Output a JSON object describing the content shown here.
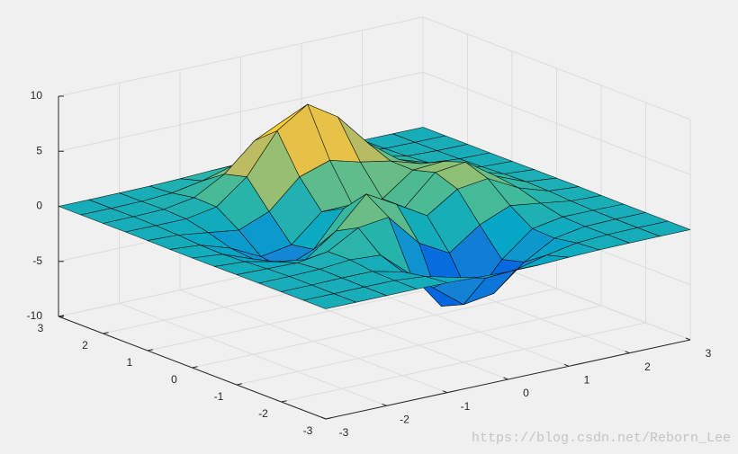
{
  "chart_data": {
    "type": "surface",
    "x": [
      -3,
      -2.5,
      -2,
      -1.5,
      -1,
      -0.5,
      0,
      0.5,
      1,
      1.5,
      2,
      2.5,
      3
    ],
    "y": [
      -3,
      -2.5,
      -2,
      -1.5,
      -1,
      -0.5,
      0,
      0.5,
      1,
      1.5,
      2,
      2.5,
      3
    ],
    "z": [
      [
        0,
        0,
        0,
        0,
        -0.03,
        -0.14,
        -0.24,
        -0.22,
        -0.11,
        -0.03,
        -0.01,
        0,
        0
      ],
      [
        0,
        0,
        0.01,
        0,
        -0.23,
        -0.91,
        -1.57,
        -1.41,
        -0.69,
        -0.18,
        -0.03,
        0,
        0
      ],
      [
        0,
        0.01,
        0.05,
        0.05,
        -0.59,
        -2.63,
        -4.75,
        -4.34,
        -2.1,
        -0.53,
        -0.06,
        0,
        0
      ],
      [
        0,
        0.01,
        0.08,
        0.33,
        0.15,
        -2.19,
        -5.68,
        -5.76,
        -2.63,
        -0.44,
        0.04,
        0.03,
        0
      ],
      [
        -0.01,
        -0.06,
        -0.13,
        0.3,
        1.86,
        2.22,
        -0.72,
        -2.22,
        -0.27,
        0.88,
        0.5,
        0.11,
        0.01
      ],
      [
        -0.03,
        -0.2,
        -0.8,
        -1.21,
        0.8,
        3.55,
        2,
        0.39,
        2.2,
        2.56,
        1.12,
        0.24,
        0.03
      ],
      [
        -0.04,
        -0.3,
        -1.33,
        -2.77,
        -1.65,
        1.48,
        0.98,
        0.37,
        2.94,
        3.27,
        1.41,
        0.3,
        0.03
      ],
      [
        -0.03,
        -0.25,
        -1.12,
        -2.49,
        -2,
        0.39,
        0.46,
        0.37,
        2.38,
        2.56,
        1.09,
        0.23,
        0.03
      ],
      [
        -0.01,
        -0.11,
        -0.48,
        -0.86,
        0.23,
        2.79,
        3.69,
        2.94,
        2.43,
        1.58,
        0.58,
        0.11,
        0.01
      ],
      [
        0,
        -0.02,
        -0.01,
        0.48,
        2.61,
        6.2,
        8,
        6.25,
        3.25,
        1.19,
        0.29,
        0.05,
        0
      ],
      [
        0,
        0.01,
        0.08,
        0.55,
        2.09,
        4.55,
        5.85,
        4.56,
        2.21,
        0.68,
        0.13,
        0.02,
        0
      ],
      [
        0,
        0,
        0.03,
        0.19,
        0.69,
        1.47,
        1.88,
        1.47,
        0.7,
        0.2,
        0.04,
        0,
        0
      ],
      [
        0,
        0,
        0.01,
        0.03,
        0.11,
        0.23,
        0.3,
        0.23,
        0.11,
        0.03,
        0.01,
        0,
        0
      ]
    ],
    "xlim": [
      -3,
      3
    ],
    "ylim": [
      -3,
      3
    ],
    "zlim": [
      -10,
      10
    ],
    "xticks": [
      -3,
      -2,
      -1,
      0,
      1,
      2,
      3
    ],
    "yticks": [
      -3,
      -2,
      -1,
      0,
      1,
      2,
      3
    ],
    "zticks": [
      -10,
      -5,
      0,
      5,
      10
    ],
    "grid": true,
    "colormap": [
      "#352a87",
      "#0363e1",
      "#1485d4",
      "#06a7c6",
      "#38b99e",
      "#92bf73",
      "#d9ba56",
      "#fcce2e",
      "#f9fb0e"
    ],
    "edge_color": "#000000"
  },
  "watermark": "https://blog.csdn.net/Reborn_Lee"
}
